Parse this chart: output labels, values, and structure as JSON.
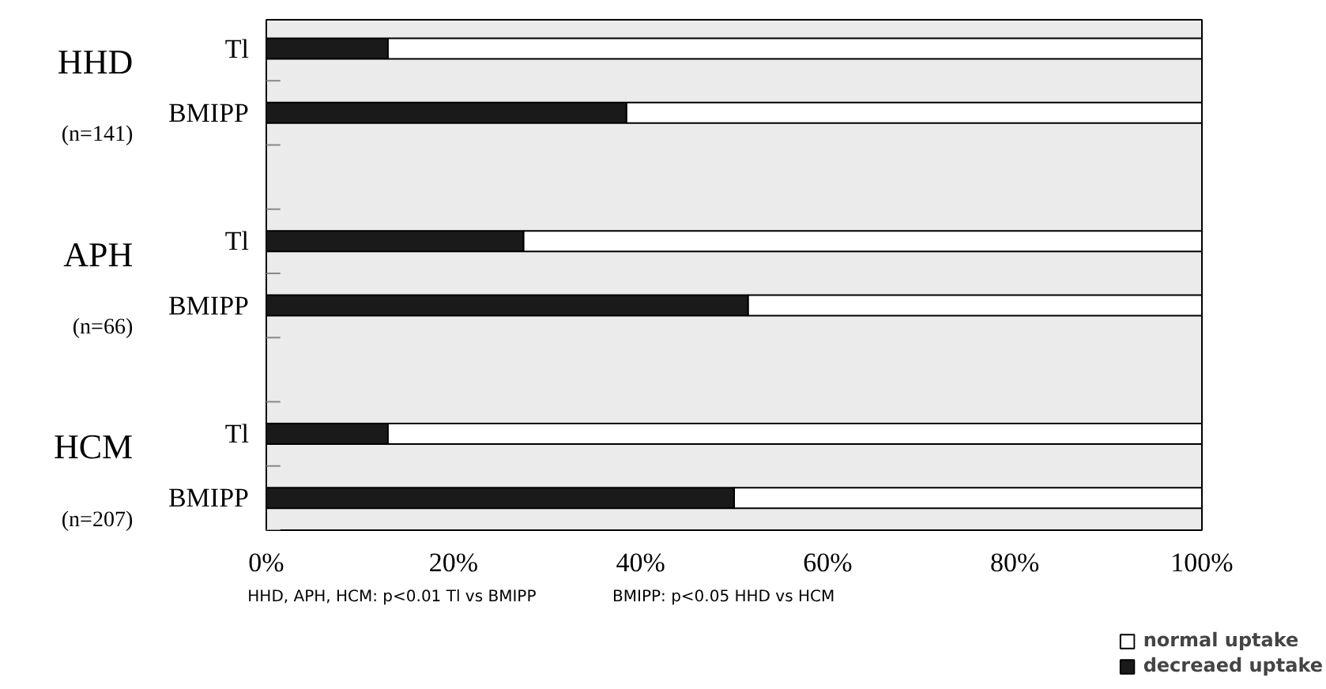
{
  "chart_data": {
    "type": "bar",
    "orientation": "horizontal",
    "stacked": true,
    "categories": [
      "Tl",
      "BMIPP",
      "Tl",
      "BMIPP",
      "Tl",
      "BMIPP"
    ],
    "series": [
      {
        "name": "decreaed uptake",
        "color": "#1a1a1a",
        "values": [
          13,
          38.5,
          27.5,
          51.5,
          13,
          50
        ]
      },
      {
        "name": "normal uptake",
        "color": "#ffffff",
        "values": [
          87,
          61.5,
          72.5,
          48.5,
          87,
          50
        ]
      }
    ],
    "xlim": [
      0,
      100
    ],
    "xticks": [
      {
        "value": 0,
        "label": "0%"
      },
      {
        "value": 20,
        "label": "20%"
      },
      {
        "value": 40,
        "label": "40%"
      },
      {
        "value": 60,
        "label": "60%"
      },
      {
        "value": 80,
        "label": "80%"
      },
      {
        "value": 100,
        "label": "100%"
      }
    ],
    "annotations": [
      "HHD",
      "(n=141)",
      "APH",
      "(n=66)",
      "HCM",
      "(n=207)",
      "HHD, APH, HCM: p<0.01 Tl vs BMIPP",
      "BMIPP: p<0.05 HHD vs HCM"
    ],
    "legend": "bottom right",
    "grid": false
  }
}
